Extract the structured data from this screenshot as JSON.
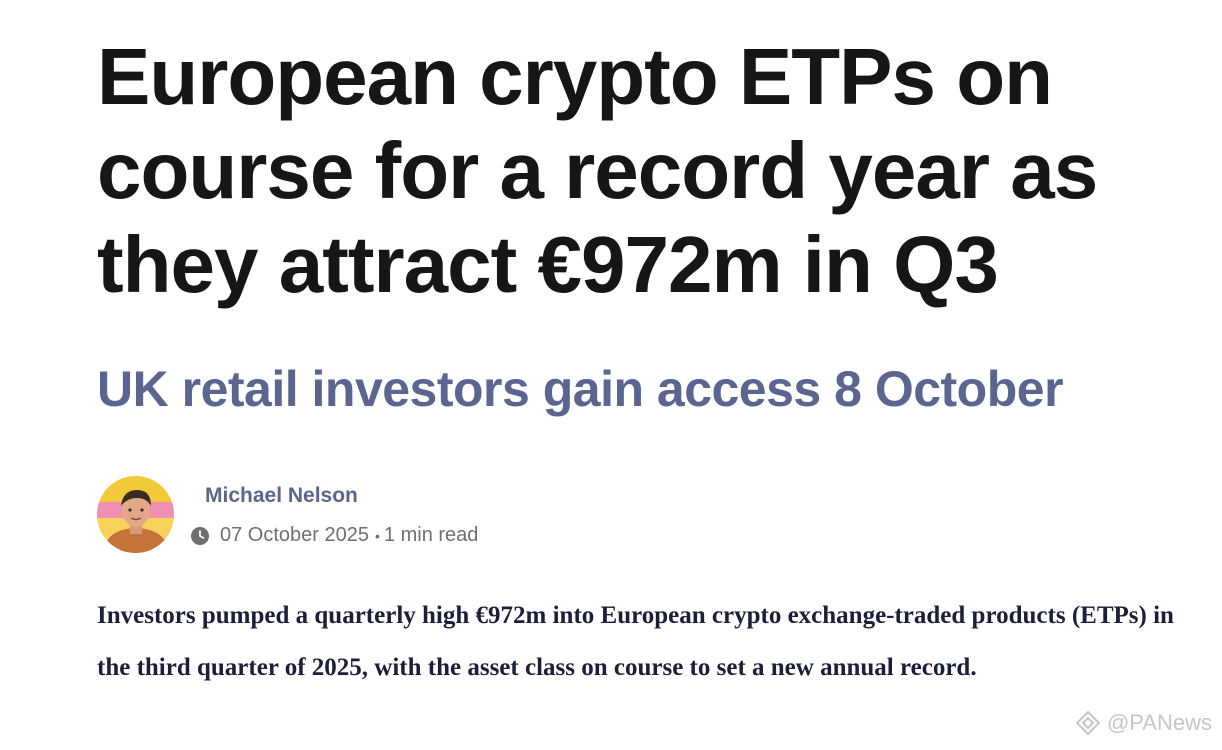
{
  "article": {
    "headline": "European crypto ETPs on course for a record year as they attract €972m in Q3",
    "subheadline": "UK retail investors gain access 8 October",
    "author": "Michael Nelson",
    "date": "07 October 2025",
    "separator": "•",
    "read_time": "1 min read",
    "lede": "Investors pumped a quarterly high €972m into European crypto exchange-traded products (ETPs) in the third quarter of 2025, with the asset class on course to set a new annual record."
  },
  "watermark": {
    "text": "@PANews"
  },
  "icons": {
    "clock": "clock-icon",
    "avatar": "author-avatar",
    "watermark": "panews-logo-icon"
  },
  "colors": {
    "headline": "#161616",
    "subheadline": "#5a6690",
    "author": "#5a6690",
    "meta": "#6f6f6f",
    "lede": "#1c1f3b"
  }
}
